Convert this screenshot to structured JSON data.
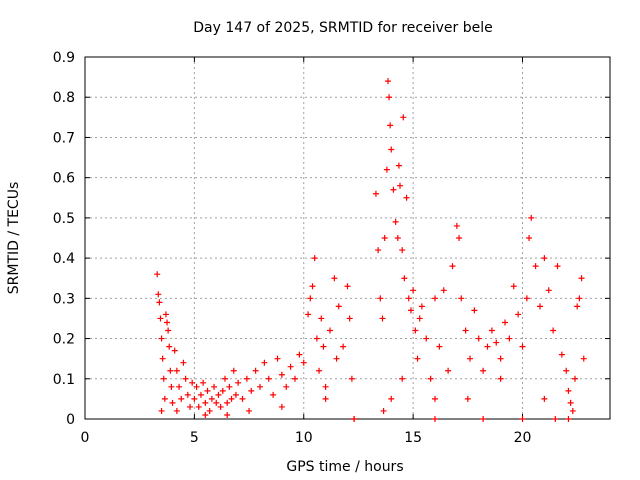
{
  "chart_data": {
    "type": "scatter",
    "title": "Day 147 of 2025, SRMTID for receiver bele",
    "xlabel": "GPS time / hours",
    "ylabel": "SRMTID / TECUs",
    "xlim": [
      0,
      24
    ],
    "ylim": [
      0,
      0.9
    ],
    "x_ticks": [
      0,
      5,
      10,
      15,
      20
    ],
    "y_ticks": [
      0,
      0.1,
      0.2,
      0.3,
      0.4,
      0.5,
      0.6,
      0.7,
      0.8,
      0.9
    ],
    "grid": true,
    "marker": "+",
    "series_color": "#ff0000",
    "series": [
      {
        "name": "SRMTID",
        "points": [
          [
            3.3,
            0.36
          ],
          [
            3.35,
            0.31
          ],
          [
            3.4,
            0.29
          ],
          [
            3.45,
            0.25
          ],
          [
            3.5,
            0.2
          ],
          [
            3.55,
            0.15
          ],
          [
            3.6,
            0.1
          ],
          [
            3.65,
            0.05
          ],
          [
            3.7,
            0.26
          ],
          [
            3.75,
            0.24
          ],
          [
            3.8,
            0.22
          ],
          [
            3.85,
            0.18
          ],
          [
            3.9,
            0.12
          ],
          [
            3.95,
            0.08
          ],
          [
            4.0,
            0.04
          ],
          [
            4.1,
            0.17
          ],
          [
            4.2,
            0.12
          ],
          [
            4.3,
            0.08
          ],
          [
            4.4,
            0.05
          ],
          [
            4.5,
            0.14
          ],
          [
            4.6,
            0.1
          ],
          [
            4.7,
            0.06
          ],
          [
            4.8,
            0.03
          ],
          [
            4.9,
            0.09
          ],
          [
            5.0,
            0.05
          ],
          [
            5.1,
            0.08
          ],
          [
            5.2,
            0.03
          ],
          [
            5.3,
            0.06
          ],
          [
            5.4,
            0.09
          ],
          [
            5.5,
            0.04
          ],
          [
            5.6,
            0.07
          ],
          [
            5.7,
            0.02
          ],
          [
            5.8,
            0.05
          ],
          [
            5.9,
            0.08
          ],
          [
            6.0,
            0.04
          ],
          [
            6.1,
            0.06
          ],
          [
            6.2,
            0.03
          ],
          [
            6.3,
            0.07
          ],
          [
            6.4,
            0.1
          ],
          [
            6.5,
            0.04
          ],
          [
            6.6,
            0.08
          ],
          [
            6.7,
            0.05
          ],
          [
            6.8,
            0.12
          ],
          [
            6.9,
            0.06
          ],
          [
            7.0,
            0.09
          ],
          [
            7.2,
            0.05
          ],
          [
            7.4,
            0.1
          ],
          [
            7.6,
            0.07
          ],
          [
            7.8,
            0.12
          ],
          [
            8.0,
            0.08
          ],
          [
            8.2,
            0.14
          ],
          [
            8.4,
            0.1
          ],
          [
            8.6,
            0.06
          ],
          [
            8.8,
            0.15
          ],
          [
            9.0,
            0.11
          ],
          [
            9.2,
            0.08
          ],
          [
            9.4,
            0.13
          ],
          [
            9.6,
            0.1
          ],
          [
            9.8,
            0.16
          ],
          [
            10.0,
            0.14
          ],
          [
            10.2,
            0.26
          ],
          [
            10.3,
            0.3
          ],
          [
            10.4,
            0.33
          ],
          [
            10.5,
            0.4
          ],
          [
            10.6,
            0.2
          ],
          [
            10.7,
            0.12
          ],
          [
            10.8,
            0.25
          ],
          [
            10.9,
            0.18
          ],
          [
            11.0,
            0.08
          ],
          [
            11.2,
            0.22
          ],
          [
            11.4,
            0.35
          ],
          [
            11.5,
            0.15
          ],
          [
            11.6,
            0.28
          ],
          [
            11.8,
            0.18
          ],
          [
            12.0,
            0.33
          ],
          [
            12.1,
            0.25
          ],
          [
            12.2,
            0.1
          ],
          [
            12.3,
            0.0
          ],
          [
            13.3,
            0.56
          ],
          [
            13.4,
            0.42
          ],
          [
            13.5,
            0.3
          ],
          [
            13.6,
            0.25
          ],
          [
            13.65,
            0.02
          ],
          [
            13.7,
            0.45
          ],
          [
            13.8,
            0.62
          ],
          [
            13.85,
            0.84
          ],
          [
            13.9,
            0.8
          ],
          [
            13.95,
            0.73
          ],
          [
            14.0,
            0.67
          ],
          [
            14.1,
            0.57
          ],
          [
            14.2,
            0.49
          ],
          [
            14.3,
            0.45
          ],
          [
            14.35,
            0.63
          ],
          [
            14.4,
            0.58
          ],
          [
            14.5,
            0.42
          ],
          [
            14.55,
            0.75
          ],
          [
            14.6,
            0.35
          ],
          [
            14.7,
            0.55
          ],
          [
            14.8,
            0.3
          ],
          [
            14.9,
            0.27
          ],
          [
            15.0,
            0.32
          ],
          [
            15.1,
            0.22
          ],
          [
            15.2,
            0.15
          ],
          [
            15.3,
            0.25
          ],
          [
            15.4,
            0.28
          ],
          [
            15.6,
            0.2
          ],
          [
            15.8,
            0.1
          ],
          [
            16.0,
            0.3
          ],
          [
            16.2,
            0.18
          ],
          [
            16.4,
            0.32
          ],
          [
            16.6,
            0.12
          ],
          [
            16.8,
            0.38
          ],
          [
            17.0,
            0.48
          ],
          [
            17.1,
            0.45
          ],
          [
            17.2,
            0.3
          ],
          [
            17.4,
            0.22
          ],
          [
            17.6,
            0.15
          ],
          [
            17.8,
            0.27
          ],
          [
            18.0,
            0.2
          ],
          [
            18.2,
            0.12
          ],
          [
            18.4,
            0.18
          ],
          [
            18.6,
            0.22
          ],
          [
            18.8,
            0.19
          ],
          [
            19.0,
            0.15
          ],
          [
            19.2,
            0.24
          ],
          [
            19.4,
            0.2
          ],
          [
            19.6,
            0.33
          ],
          [
            19.8,
            0.26
          ],
          [
            20.0,
            0.18
          ],
          [
            20.2,
            0.3
          ],
          [
            20.3,
            0.45
          ],
          [
            20.4,
            0.5
          ],
          [
            20.6,
            0.38
          ],
          [
            20.8,
            0.28
          ],
          [
            21.0,
            0.4
          ],
          [
            21.2,
            0.32
          ],
          [
            21.4,
            0.22
          ],
          [
            21.6,
            0.38
          ],
          [
            21.8,
            0.16
          ],
          [
            22.0,
            0.12
          ],
          [
            22.1,
            0.07
          ],
          [
            22.2,
            0.04
          ],
          [
            22.3,
            0.02
          ],
          [
            22.4,
            0.1
          ],
          [
            22.5,
            0.28
          ],
          [
            22.6,
            0.3
          ],
          [
            22.7,
            0.35
          ],
          [
            22.8,
            0.15
          ],
          [
            3.5,
            0.02
          ],
          [
            4.2,
            0.02
          ],
          [
            5.5,
            0.01
          ],
          [
            6.5,
            0.01
          ],
          [
            7.5,
            0.02
          ],
          [
            9.0,
            0.03
          ],
          [
            11.0,
            0.05
          ],
          [
            14.0,
            0.05
          ],
          [
            14.5,
            0.1
          ],
          [
            16.0,
            0.05
          ],
          [
            17.5,
            0.05
          ],
          [
            19.0,
            0.1
          ],
          [
            21.0,
            0.05
          ],
          [
            12.3,
            0.0
          ],
          [
            16.0,
            0.0
          ],
          [
            18.2,
            0.0
          ],
          [
            20.0,
            0.0
          ],
          [
            21.5,
            0.0
          ],
          [
            22.1,
            0.0
          ]
        ]
      }
    ]
  }
}
